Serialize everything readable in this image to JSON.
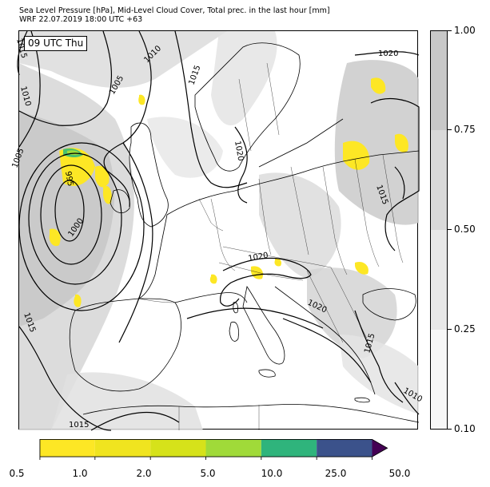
{
  "title": {
    "line1": "Sea Level Pressure [hPa], Mid-Level Cloud Cover, Total prec. in the last hour [mm]",
    "line2": "WRF 22.07.2019 18:00 UTC +63"
  },
  "map": {
    "time_label": "09 UTC Thu",
    "isobar_labels": [
      "1005",
      "1010",
      "1010",
      "1015",
      "1020",
      "995",
      "1000",
      "1005",
      "1015",
      "1020",
      "1020",
      "1015",
      "1015",
      "1015",
      "1010",
      "1020",
      "1015"
    ],
    "colors": {
      "isobar": "#000000",
      "coastline": "#000000",
      "cloud_light": "#e6e6e6",
      "cloud_mid": "#d2d2d2",
      "cloud_dense": "#c4c4c4",
      "precip_light": "#fde725",
      "precip_mid": "#a0da39",
      "precip_heavy": "#4ac16d"
    }
  },
  "cloud_colorbar": {
    "ticks": [
      "0.10",
      "0.25",
      "0.50",
      "0.75",
      "1.00"
    ],
    "colors": [
      "#f7f7f7",
      "#e8e8e8",
      "#d9d9d9",
      "#c8c8c8"
    ]
  },
  "precip_colorbar": {
    "ticks": [
      "0.5",
      "1.0",
      "2.0",
      "5.0",
      "10.0",
      "25.0",
      "50.0"
    ],
    "colors": [
      "#fde725",
      "#f0e41f",
      "#d6e21a",
      "#a0da39",
      "#4ac16d",
      "#2fb47c",
      "#3b528b"
    ],
    "extend_color": "#440154"
  }
}
